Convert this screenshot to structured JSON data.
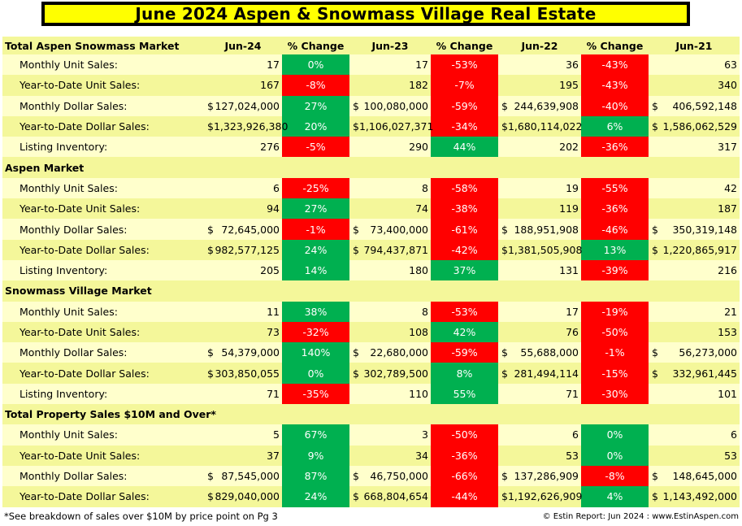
{
  "title": "June 2024 Aspen & Snowmass Village Real Estate",
  "headers": [
    "Jun-24",
    "% Change",
    "Jun-23",
    "% Change",
    "Jun-22",
    "% Change",
    "Jun-21"
  ],
  "sections": [
    {
      "name": "Total Aspen Snowmass Market",
      "rows": [
        {
          "label": "Monthly Unit Sales:",
          "jun24": "17",
          "c1": "0%",
          "jun23": "17",
          "c2": "-53%",
          "jun22": "36",
          "c3": "-43%",
          "jun21": "63"
        },
        {
          "label": "Year-to-Date Unit Sales:",
          "jun24": "167",
          "c1": "-8%",
          "jun23": "182",
          "c2": "-7%",
          "jun22": "195",
          "c3": "-43%",
          "jun21": "340"
        },
        {
          "label": "Monthly Dollar Sales:",
          "jun24": "127,024,000",
          "c1": "27%",
          "jun23": "100,080,000",
          "c2": "-59%",
          "jun22": "244,639,908",
          "c3": "-40%",
          "jun21": "406,592,148"
        },
        {
          "label": "Year-to-Date Dollar Sales:",
          "jun24": "1,323,926,380",
          "c1": "20%",
          "jun23": "1,106,027,371",
          "c2": "-34%",
          "jun22": "1,680,114,022",
          "c3": "6%",
          "jun21": "1,586,062,529"
        },
        {
          "label": "Listing Inventory:",
          "jun24": "276",
          "c1": "-5%",
          "jun23": "290",
          "c2": "44%",
          "jun22": "202",
          "c3": "-36%",
          "jun21": "317"
        }
      ]
    },
    {
      "name": "Aspen Market",
      "rows": [
        {
          "label": "Monthly Unit Sales:",
          "jun24": "6",
          "c1": "-25%",
          "jun23": "8",
          "c2": "-58%",
          "jun22": "19",
          "c3": "-55%",
          "jun21": "42"
        },
        {
          "label": "Year-to-Date Unit Sales:",
          "jun24": "94",
          "c1": "27%",
          "jun23": "74",
          "c2": "-38%",
          "jun22": "119",
          "c3": "-36%",
          "jun21": "187"
        },
        {
          "label": "Monthly Dollar Sales:",
          "jun24": "72,645,000",
          "c1": "-1%",
          "jun23": "73,400,000",
          "c2": "-61%",
          "jun22": "188,951,908",
          "c3": "-46%",
          "jun21": "350,319,148"
        },
        {
          "label": "Year-to-Date Dollar Sales:",
          "jun24": "982,577,125",
          "c1": "24%",
          "jun23": "794,437,871",
          "c2": "-42%",
          "jun22": "1,381,505,908",
          "c3": "13%",
          "jun21": "1,220,865,917"
        },
        {
          "label": "Listing Inventory:",
          "jun24": "205",
          "c1": "14%",
          "jun23": "180",
          "c2": "37%",
          "jun22": "131",
          "c3": "-39%",
          "jun21": "216"
        }
      ]
    },
    {
      "name": "Snowmass Village Market",
      "rows": [
        {
          "label": "Monthly Unit Sales:",
          "jun24": "11",
          "c1": "38%",
          "jun23": "8",
          "c2": "-53%",
          "jun22": "17",
          "c3": "-19%",
          "jun21": "21"
        },
        {
          "label": "Year-to-Date Unit Sales:",
          "jun24": "73",
          "c1": "-32%",
          "jun23": "108",
          "c2": "42%",
          "jun22": "76",
          "c3": "-50%",
          "jun21": "153"
        },
        {
          "label": "Monthly Dollar Sales:",
          "jun24": "54,379,000",
          "c1": "140%",
          "jun23": "22,680,000",
          "c2": "-59%",
          "jun22": "55,688,000",
          "c3": "-1%",
          "jun21": "56,273,000"
        },
        {
          "label": "Year-to-Date Dollar Sales:",
          "jun24": "303,850,055",
          "c1": "0%",
          "jun23": "302,789,500",
          "c2": "8%",
          "jun22": "281,494,114",
          "c3": "-15%",
          "jun21": "332,961,445"
        },
        {
          "label": "Listing Inventory:",
          "jun24": "71",
          "c1": "-35%",
          "jun23": "110",
          "c2": "55%",
          "jun22": "71",
          "c3": "-30%",
          "jun21": "101"
        }
      ]
    },
    {
      "name": "Total Property Sales $10M and Over*",
      "rows": [
        {
          "label": "Monthly Unit Sales:",
          "jun24": "5",
          "c1": "67%",
          "jun23": "3",
          "c2": "-50%",
          "jun22": "6",
          "c3": "0%",
          "jun21": "6"
        },
        {
          "label": "Year-to-Date Unit Sales:",
          "jun24": "37",
          "c1": "9%",
          "jun23": "34",
          "c2": "-36%",
          "jun22": "53",
          "c3": "0%",
          "jun21": "53"
        },
        {
          "label": "Monthly Dollar Sales:",
          "jun24": "87,545,000",
          "c1": "87%",
          "jun23": "46,750,000",
          "c2": "-66%",
          "jun22": "137,286,909",
          "c3": "-8%",
          "jun21": "148,645,000"
        },
        {
          "label": "Year-to-Date Dollar Sales:",
          "jun24": "829,040,000",
          "c1": "24%",
          "jun23": "668,804,654",
          "c2": "-44%",
          "jun22": "1,192,626,909",
          "c3": "4%",
          "jun21": "1,143,492,000"
        }
      ]
    }
  ],
  "currency_symbol": "$",
  "footer_note": "*See breakdown of sales over $10M by price point on Pg 3",
  "footer_credit": "© Estin Report: Jun 2024 : www.EstinAspen.com",
  "colors": {
    "title_bg": "#ffff00",
    "row_light": "#ffffcc",
    "row_dark": "#f4f79a",
    "negative": "#ff0000",
    "positive": "#00b050"
  }
}
